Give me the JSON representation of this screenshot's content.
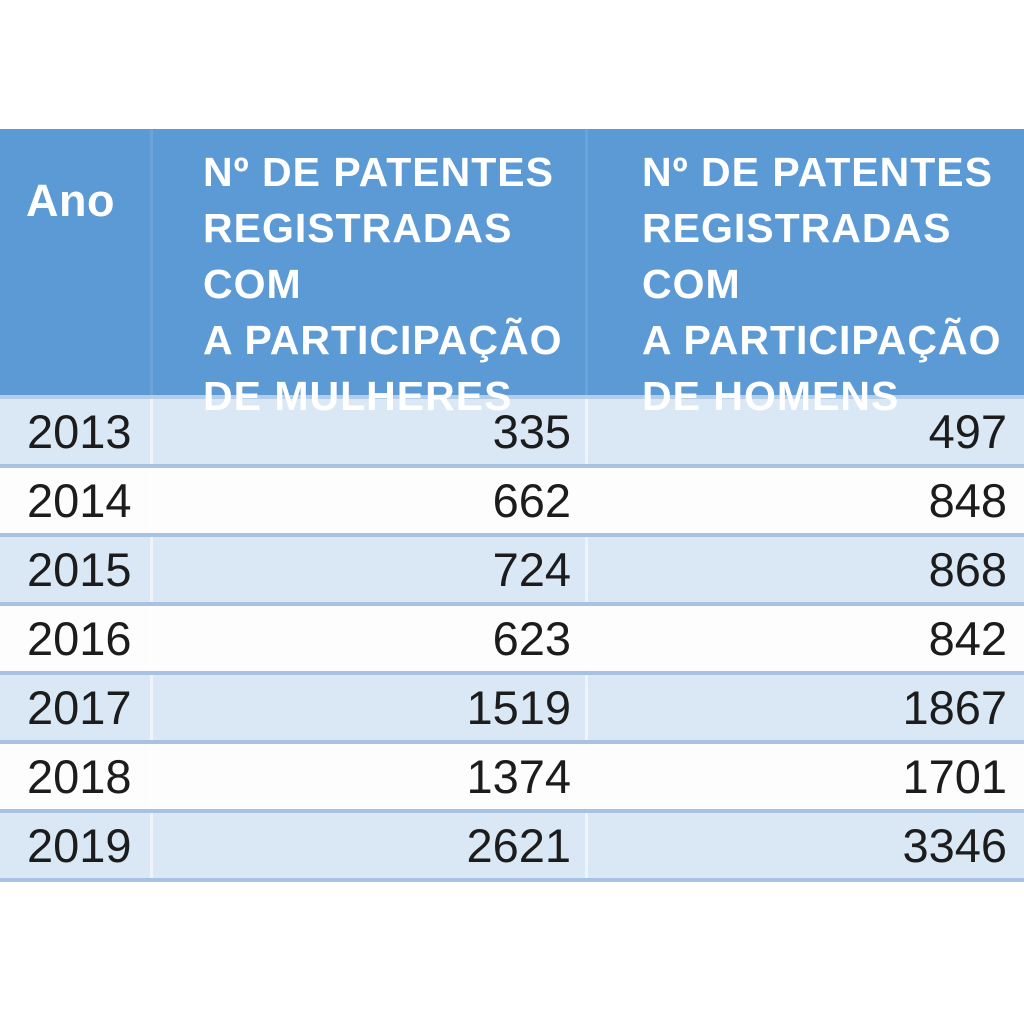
{
  "table": {
    "header": {
      "ano_label": "Ano",
      "women_label": "Nº DE PATENTES\nREGISTRADAS COM\nA PARTICIPAÇÃO\nDE MULHERES",
      "men_label": "Nº DE PATENTES\nREGISTRADAS COM\nA PARTICIPAÇÃO\nDE HOMENS"
    },
    "rows": [
      {
        "year": "2013",
        "women": "335",
        "men": "497"
      },
      {
        "year": "2014",
        "women": "662",
        "men": "848"
      },
      {
        "year": "2015",
        "women": "724",
        "men": "868"
      },
      {
        "year": "2016",
        "women": "623",
        "men": "842"
      },
      {
        "year": "2017",
        "women": "1519",
        "men": "1867"
      },
      {
        "year": "2018",
        "women": "1374",
        "men": "1701"
      },
      {
        "year": "2019",
        "women": "2621",
        "men": "3346"
      }
    ]
  },
  "colors": {
    "header_bg": "#5b9ad4",
    "header_text": "#ffffff",
    "header_divider": "#b6cde7",
    "row_blue": "#dae7f4",
    "row_white": "#fdfdfe",
    "divider": "#a7c2e2",
    "body_text": "#1c1c1c"
  },
  "chart_data": {
    "type": "table",
    "columns": [
      "Ano",
      "Nº de patentes registradas com a participação de mulheres",
      "Nº de patentes registradas com a participação de homens"
    ],
    "categories": [
      2013,
      2014,
      2015,
      2016,
      2017,
      2018,
      2019
    ],
    "series": [
      {
        "name": "Nº de patentes registradas com a participação de mulheres",
        "values": [
          335,
          662,
          724,
          623,
          1519,
          1374,
          2621
        ]
      },
      {
        "name": "Nº de patentes registradas com a participação de homens",
        "values": [
          497,
          848,
          868,
          842,
          1867,
          1701,
          3346
        ]
      }
    ],
    "title": "",
    "legend": false,
    "grid": false
  }
}
